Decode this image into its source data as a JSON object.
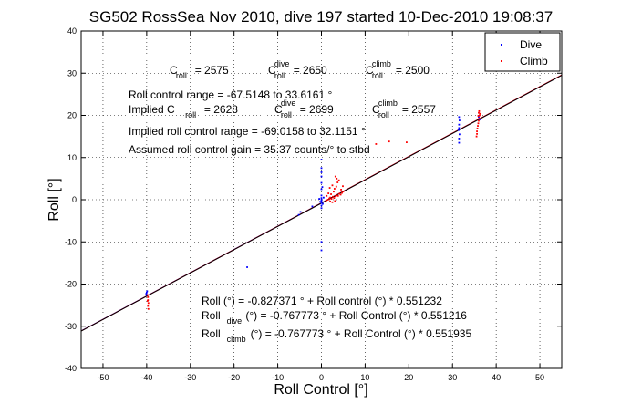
{
  "chart_data": {
    "type": "scatter",
    "title": "SG502 RossSea Nov 2010, dive 197 started 10-Dec-2010 19:08:37",
    "xlabel": "Roll Control [°]",
    "ylabel": "Roll [°]",
    "xlim": [
      -55,
      55
    ],
    "ylim": [
      -40,
      40
    ],
    "xticks": [
      -50,
      -40,
      -30,
      -20,
      -10,
      0,
      10,
      20,
      30,
      40,
      50
    ],
    "yticks": [
      -40,
      -30,
      -20,
      -10,
      0,
      10,
      20,
      30,
      40
    ],
    "grid": true,
    "legend_position": "top-right",
    "series": [
      {
        "name": "Dive",
        "color": "#0000ff",
        "marker": "dot",
        "points": [
          [
            -40,
            -22
          ],
          [
            -40,
            -22.6
          ],
          [
            -39.9,
            -21.7
          ],
          [
            -40.1,
            -22.3
          ],
          [
            -17,
            -16
          ],
          [
            -5.2,
            -3.6
          ],
          [
            -4.8,
            -2.9
          ],
          [
            -2.1,
            -1.6
          ],
          [
            0,
            -12
          ],
          [
            0,
            -10
          ],
          [
            0,
            -2
          ],
          [
            0,
            -1.4
          ],
          [
            0,
            -0.8
          ],
          [
            0,
            -0.3
          ],
          [
            0,
            0
          ],
          [
            0,
            0.4
          ],
          [
            0,
            1
          ],
          [
            0,
            2.5
          ],
          [
            0,
            4
          ],
          [
            0,
            5.5
          ],
          [
            0,
            6.5
          ],
          [
            0,
            7.5
          ],
          [
            0,
            9.5
          ],
          [
            0.3,
            -1.0
          ],
          [
            -0.3,
            -0.5
          ],
          [
            0.5,
            0.5
          ],
          [
            -0.5,
            0.2
          ],
          [
            0.2,
            3.0
          ],
          [
            31.5,
            13.5
          ],
          [
            31.5,
            14.5
          ],
          [
            31.6,
            15.5
          ],
          [
            31.4,
            16.5
          ],
          [
            31.5,
            17.0
          ],
          [
            31.5,
            17.8
          ],
          [
            31.6,
            18.8
          ],
          [
            31.5,
            19.6
          ],
          [
            36.2,
            19.0
          ],
          [
            36.0,
            19.6
          ]
        ]
      },
      {
        "name": "Climb",
        "color": "#ff0000",
        "marker": "dot",
        "points": [
          [
            -39.8,
            -22.6
          ],
          [
            -39.7,
            -23.1
          ],
          [
            -39.7,
            -23.8
          ],
          [
            -39.6,
            -24.5
          ],
          [
            -39.7,
            -25.2
          ],
          [
            -39.6,
            -25.9
          ],
          [
            -39.8,
            -24.0
          ],
          [
            1.5,
            0.0
          ],
          [
            1.8,
            0.3
          ],
          [
            2.0,
            0.5
          ],
          [
            2.3,
            0.2
          ],
          [
            2.6,
            0.7
          ],
          [
            2.9,
            0.4
          ],
          [
            3.2,
            0.8
          ],
          [
            3.5,
            1.0
          ],
          [
            3.8,
            0.9
          ],
          [
            4.1,
            1.4
          ],
          [
            4.4,
            1.2
          ],
          [
            4.7,
            1.6
          ],
          [
            5.0,
            1.9
          ],
          [
            1.2,
            0.9
          ],
          [
            1.6,
            1.5
          ],
          [
            2.2,
            1.3
          ],
          [
            2.8,
            1.9
          ],
          [
            3.0,
            2.6
          ],
          [
            3.4,
            3.1
          ],
          [
            3.7,
            4.1
          ],
          [
            3.5,
            5.0
          ],
          [
            4.0,
            4.6
          ],
          [
            2.5,
            3.4
          ],
          [
            1.9,
            2.8
          ],
          [
            4.5,
            2.4
          ],
          [
            4.9,
            3.2
          ],
          [
            3.2,
            5.5
          ],
          [
            2.0,
            -0.4
          ],
          [
            2.5,
            -0.6
          ],
          [
            3.1,
            -0.3
          ],
          [
            1.1,
            -0.2
          ],
          [
            12.5,
            13.2
          ],
          [
            15.5,
            13.8
          ],
          [
            19.5,
            13.6
          ],
          [
            35.5,
            15.0
          ],
          [
            35.6,
            15.6
          ],
          [
            35.6,
            16.2
          ],
          [
            35.7,
            16.9
          ],
          [
            35.8,
            17.5
          ],
          [
            35.9,
            18.1
          ],
          [
            36.0,
            18.7
          ],
          [
            36.1,
            19.3
          ],
          [
            36.2,
            20.0
          ],
          [
            36.3,
            20.4
          ],
          [
            36.1,
            21.0
          ],
          [
            36.0,
            20.6
          ],
          [
            35.9,
            19.9
          ]
        ]
      }
    ],
    "fit_lines": [
      {
        "label": "Roll",
        "color": "#0000ff",
        "x": [
          -55,
          55
        ],
        "intercept": -0.767773,
        "slope": 0.551216
      },
      {
        "label": "Roll",
        "color": "#ff0000",
        "x": [
          -55,
          55
        ],
        "intercept": -0.767773,
        "slope": 0.551935
      },
      {
        "label": "Roll",
        "color": "#000000",
        "x": [
          -55,
          55
        ],
        "intercept": -0.827371,
        "slope": 0.551232
      }
    ],
    "annotations": {
      "c_roll_line": [
        {
          "sym": "C",
          "sub": "roll",
          "sup": "",
          "value": " = 2575"
        },
        {
          "sym": "C",
          "sub": "roll",
          "sup": "dive",
          "value": " = 2650"
        },
        {
          "sym": "C",
          "sub": "roll",
          "sup": "climb",
          "value": " = 2500"
        }
      ],
      "roll_control_range": "Roll control range = -67.5148 to 33.6161 °",
      "implied_line": [
        {
          "sym": "Implied C",
          "sub": "roll",
          "sup": "",
          "value": " = 2628"
        },
        {
          "sym": "C",
          "sub": "roll",
          "sup": "dive",
          "value": " = 2699"
        },
        {
          "sym": "C",
          "sub": "roll",
          "sup": "climb",
          "value": " = 2557"
        }
      ],
      "implied_range": "Implied roll control range = -69.0158 to 32.1151 °",
      "gain": "Assumed roll control gain = 35.37 counts/° to stbd",
      "eq_all": "Roll (°) = -0.827371 ° + Roll control (°) * 0.551232",
      "eq_dive": {
        "main": "Roll",
        "sub": "dive",
        "rest": " (°) = -0.767773 ° + Roll Control (°) * 0.551216"
      },
      "eq_climb": {
        "main": "Roll",
        "sub": "climb",
        "rest": " (°) = -0.767773 ° + Roll Control (°) * 0.551935"
      }
    }
  }
}
